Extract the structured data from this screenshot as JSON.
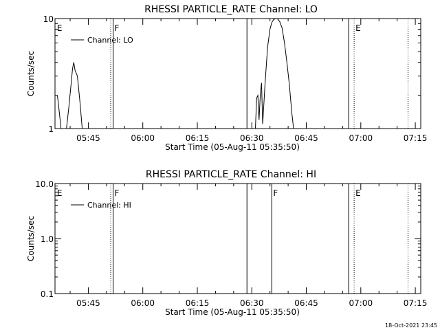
{
  "timestamp": "18-Oct-2021 23:45",
  "chart_data": [
    {
      "type": "line",
      "title": "RHESSI PARTICLE_RATE Channel: LO",
      "xlabel": "Start Time (05-Aug-11 05:35:50)",
      "ylabel": "Counts/sec",
      "y_scale": "log",
      "ylim": [
        1,
        10
      ],
      "y_ticks": [
        {
          "value": 1,
          "label": "1"
        },
        {
          "value": 10,
          "label": "10"
        }
      ],
      "xlim": [
        "05:35:50",
        "07:16:30"
      ],
      "x_ticks": [
        "05:45",
        "06:00",
        "06:15",
        "06:30",
        "06:45",
        "07:00",
        "07:15"
      ],
      "legend": {
        "label": "Channel: LO",
        "position": "top-left"
      },
      "grid": false,
      "markers": [
        {
          "time": "05:36:00",
          "label": "E",
          "style": "none"
        },
        {
          "time": "05:51:10",
          "label": "",
          "style": "dotted"
        },
        {
          "time": "05:51:50",
          "label": "F",
          "style": "solid"
        },
        {
          "time": "06:28:40",
          "label": "",
          "style": "solid"
        },
        {
          "time": "06:56:40",
          "label": "",
          "style": "solid"
        },
        {
          "time": "06:58:10",
          "label": "E",
          "style": "dotted"
        },
        {
          "time": "07:13:00",
          "label": "",
          "style": "dotted"
        }
      ],
      "segments": [
        {
          "x": [
            "05:36:30",
            "05:36:50",
            "05:37:30"
          ],
          "y": [
            2.0,
            1.6,
            1.0
          ]
        },
        {
          "x": [
            "05:39:00",
            "05:39:40",
            "05:40:20",
            "05:40:40",
            "05:41:00",
            "05:41:20",
            "05:42:00",
            "05:42:40",
            "05:43:20"
          ],
          "y": [
            1.0,
            1.6,
            2.7,
            3.5,
            4.0,
            3.4,
            3.0,
            1.8,
            1.0
          ]
        },
        {
          "x": [
            "06:31:00",
            "06:31:20",
            "06:31:40",
            "06:32:00",
            "06:32:20",
            "06:32:40",
            "06:33:00",
            "06:33:40",
            "06:34:20",
            "06:35:00",
            "06:35:30",
            "06:36:00",
            "06:36:30",
            "06:37:00",
            "06:37:40",
            "06:38:20",
            "06:39:00",
            "06:39:40",
            "06:40:20",
            "06:41:00",
            "06:41:30"
          ],
          "y": [
            1.0,
            1.9,
            2.0,
            1.2,
            2.0,
            2.6,
            1.1,
            2.6,
            5.5,
            8.0,
            9.2,
            9.8,
            10.0,
            10.0,
            9.4,
            8.2,
            6.0,
            4.0,
            2.5,
            1.4,
            1.0
          ]
        }
      ]
    },
    {
      "type": "line",
      "title": "RHESSI PARTICLE_RATE Channel: HI",
      "xlabel": "Start Time (05-Aug-11 05:35:50)",
      "ylabel": "Counts/sec",
      "y_scale": "log",
      "ylim": [
        0.1,
        10
      ],
      "y_ticks": [
        {
          "value": 0.1,
          "label": "0.1"
        },
        {
          "value": 1,
          "label": "1.0"
        },
        {
          "value": 10,
          "label": "10.0"
        }
      ],
      "xlim": [
        "05:35:50",
        "07:16:30"
      ],
      "x_ticks": [
        "05:45",
        "06:00",
        "06:15",
        "06:30",
        "06:45",
        "07:00",
        "07:15"
      ],
      "legend": {
        "label": "Channel: HI",
        "position": "top-left"
      },
      "grid": false,
      "markers": [
        {
          "time": "05:36:00",
          "label": "E",
          "style": "none"
        },
        {
          "time": "05:51:10",
          "label": "",
          "style": "dotted"
        },
        {
          "time": "05:51:50",
          "label": "F",
          "style": "solid"
        },
        {
          "time": "06:28:40",
          "label": "",
          "style": "solid"
        },
        {
          "time": "06:35:30",
          "label": "F",
          "style": "solid"
        },
        {
          "time": "06:56:40",
          "label": "",
          "style": "solid"
        },
        {
          "time": "06:58:10",
          "label": "E",
          "style": "dotted"
        },
        {
          "time": "07:13:00",
          "label": "",
          "style": "dotted"
        }
      ],
      "segments": []
    }
  ]
}
